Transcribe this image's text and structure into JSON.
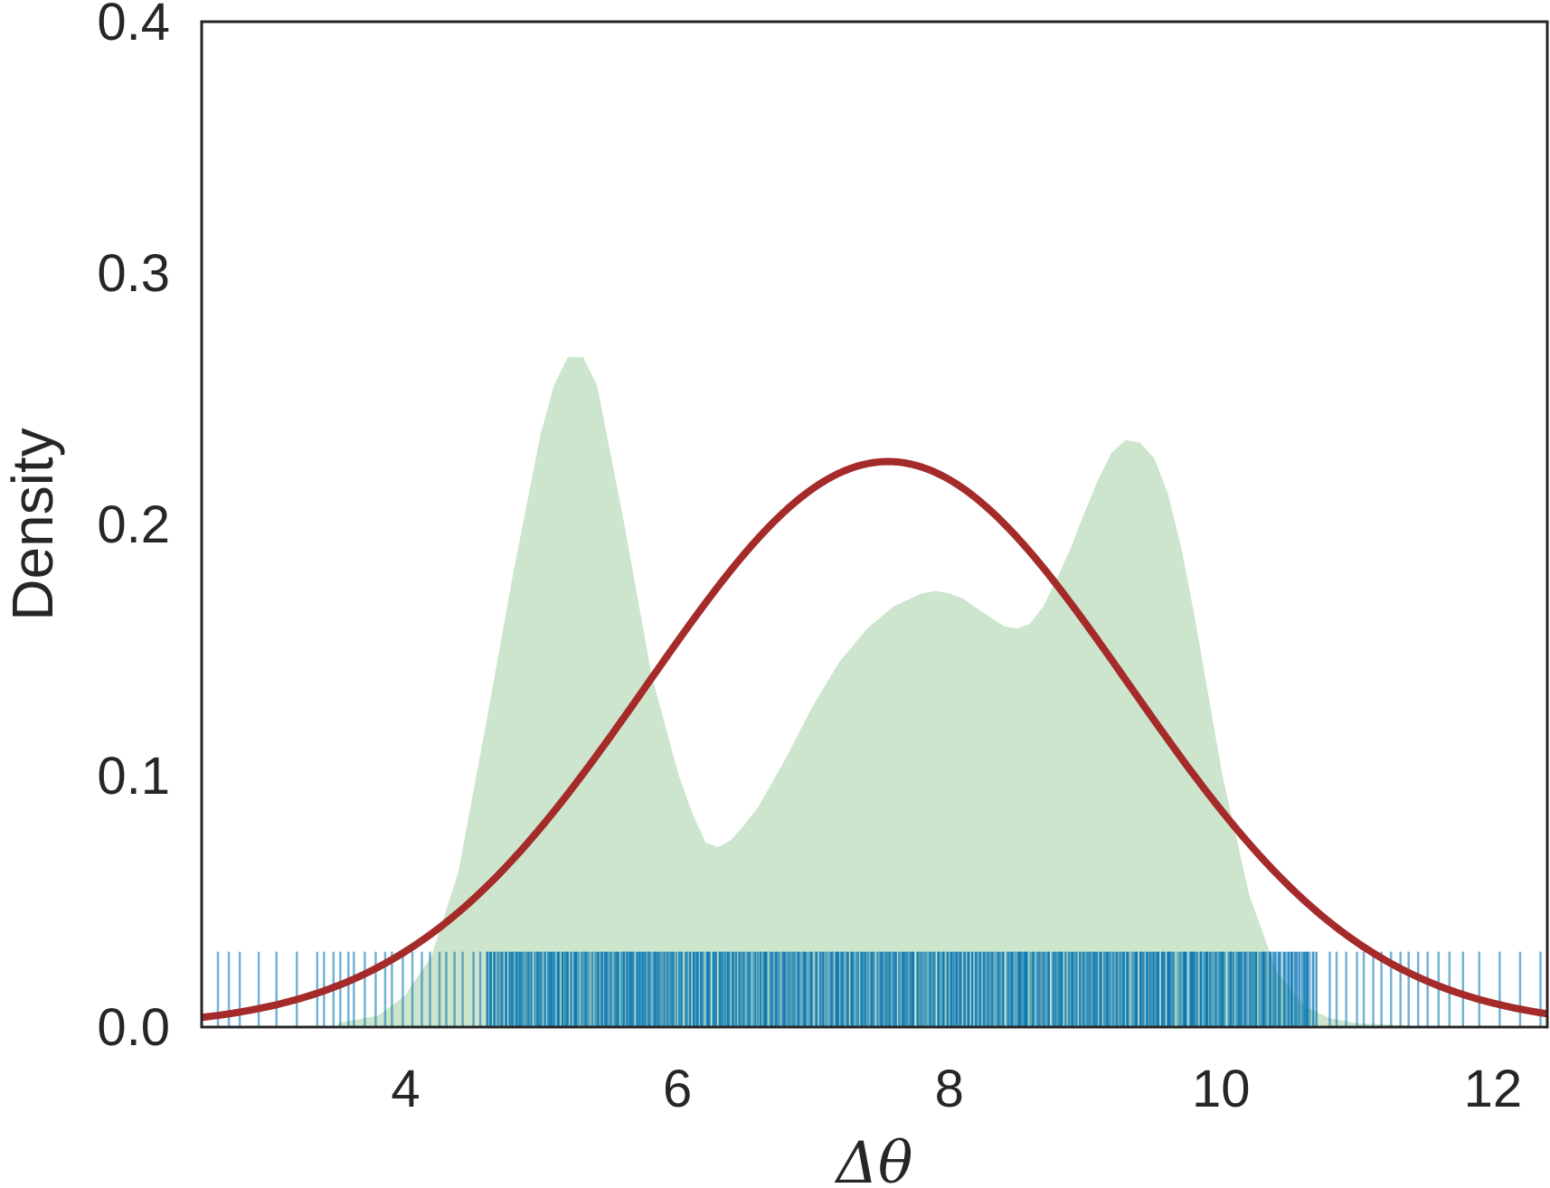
{
  "chart_data": {
    "type": "line",
    "title": "",
    "xlabel": "Δθ",
    "ylabel": "Density",
    "xlim": [
      2.5,
      12.4
    ],
    "ylim": [
      0.0,
      0.4
    ],
    "x_ticks": [
      4,
      6,
      8,
      10,
      12
    ],
    "y_ticks": [
      0.0,
      0.1,
      0.2,
      0.3,
      0.4
    ],
    "x_tick_labels": [
      "4",
      "6",
      "8",
      "10",
      "12"
    ],
    "y_tick_labels": [
      "0.0",
      "0.1",
      "0.2",
      "0.3",
      "0.4"
    ],
    "grid": false,
    "legend": "none",
    "series": [
      {
        "kind": "kde-filled-area",
        "color": "#4daf4a",
        "fill_color": "#cde5cc",
        "x": [
          3.5,
          3.8,
          4.0,
          4.2,
          4.4,
          4.6,
          4.8,
          5.0,
          5.1,
          5.2,
          5.3,
          5.4,
          5.6,
          5.8,
          6.0,
          6.1,
          6.2,
          6.3,
          6.4,
          6.5,
          6.6,
          6.8,
          7.0,
          7.2,
          7.4,
          7.6,
          7.8,
          7.9,
          8.0,
          8.1,
          8.2,
          8.4,
          8.5,
          8.6,
          8.7,
          8.8,
          8.9,
          9.0,
          9.1,
          9.2,
          9.3,
          9.4,
          9.5,
          9.6,
          9.7,
          9.8,
          9.9,
          10.0,
          10.2,
          10.4,
          10.6,
          10.8,
          11.0,
          11.2,
          11.4
        ],
        "y": [
          0.001,
          0.004,
          0.012,
          0.028,
          0.062,
          0.12,
          0.18,
          0.235,
          0.255,
          0.266,
          0.266,
          0.255,
          0.2,
          0.14,
          0.1,
          0.085,
          0.073,
          0.071,
          0.074,
          0.08,
          0.087,
          0.106,
          0.127,
          0.145,
          0.158,
          0.167,
          0.172,
          0.173,
          0.172,
          0.17,
          0.166,
          0.159,
          0.158,
          0.16,
          0.167,
          0.178,
          0.19,
          0.204,
          0.217,
          0.228,
          0.233,
          0.232,
          0.226,
          0.212,
          0.19,
          0.162,
          0.131,
          0.1,
          0.052,
          0.022,
          0.008,
          0.003,
          0.001,
          0.0005,
          0.0001
        ]
      },
      {
        "kind": "normal-fit-line",
        "color": "#a52a2a",
        "mean": 7.55,
        "sd": 1.77,
        "peak": 0.225
      },
      {
        "kind": "rug",
        "color": "#0072b2",
        "rug_height": 0.03,
        "dense_range": [
          4.6,
          10.7
        ],
        "x": [
          2.62,
          2.7,
          2.78,
          2.92,
          3.05,
          3.2,
          3.35,
          3.4,
          3.47,
          3.52,
          3.58,
          3.62,
          3.7,
          3.78,
          3.85,
          3.9,
          3.98,
          4.05,
          4.12,
          4.18,
          4.25,
          4.3,
          4.36,
          4.42,
          4.5,
          4.55,
          10.8,
          10.85,
          10.92,
          11.0,
          11.05,
          11.12,
          11.18,
          11.25,
          11.32,
          11.38,
          11.45,
          11.52,
          11.6,
          11.68,
          11.78,
          11.9,
          12.05,
          12.2,
          12.35
        ]
      }
    ]
  }
}
